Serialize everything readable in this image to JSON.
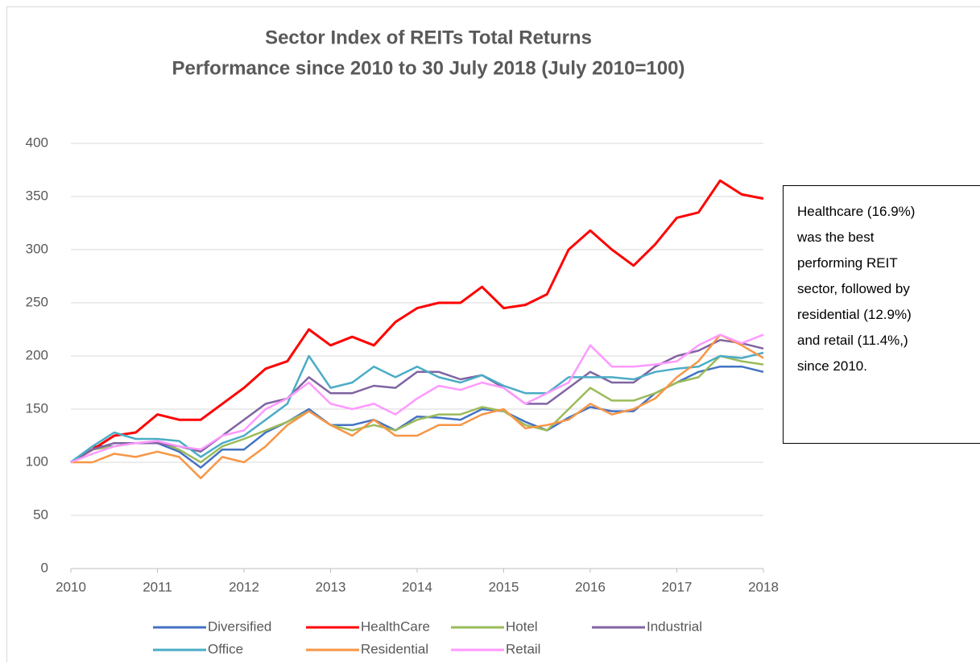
{
  "chart_data": {
    "type": "line",
    "title": "Sector Index of REITs Total Returns",
    "subtitle": "Performance since 2010 to 30 July 2018 (July 2010=100)",
    "annotation": [
      "Healthcare (16.9%)",
      "was the best",
      "performing REIT",
      "sector, followed by",
      "residential (12.9%)",
      "and retail (11.4%,)",
      "since 2010."
    ],
    "x": [
      2010,
      2010.25,
      2010.5,
      2010.75,
      2011,
      2011.25,
      2011.5,
      2011.75,
      2012,
      2012.25,
      2012.5,
      2012.75,
      2013,
      2013.25,
      2013.5,
      2013.75,
      2014,
      2014.25,
      2014.5,
      2014.75,
      2015,
      2015.25,
      2015.5,
      2015.75,
      2016,
      2016.25,
      2016.5,
      2016.75,
      2017,
      2017.25,
      2017.5,
      2017.75,
      2018
    ],
    "xlim": [
      2010,
      2018
    ],
    "xticks": [
      2010,
      2011,
      2012,
      2013,
      2014,
      2015,
      2016,
      2017,
      2018
    ],
    "ylim": [
      0,
      400
    ],
    "yticks": [
      0,
      50,
      100,
      150,
      200,
      250,
      300,
      350,
      400
    ],
    "grid": true,
    "legend": "bottom",
    "series": [
      {
        "name": "Diversified",
        "color": "#4472c4",
        "values": [
          100,
          115,
          115,
          118,
          118,
          110,
          95,
          112,
          112,
          128,
          138,
          150,
          135,
          135,
          140,
          130,
          143,
          142,
          140,
          150,
          148,
          138,
          130,
          142,
          152,
          148,
          148,
          165,
          175,
          185,
          190,
          190,
          185
        ]
      },
      {
        "name": "HealthCare",
        "color": "#ff0000",
        "values": [
          100,
          112,
          125,
          128,
          145,
          140,
          140,
          155,
          170,
          188,
          195,
          225,
          210,
          218,
          210,
          232,
          245,
          250,
          250,
          265,
          245,
          248,
          258,
          300,
          318,
          300,
          285,
          305,
          330,
          335,
          365,
          352,
          348
        ]
      },
      {
        "name": "Hotel",
        "color": "#9bbb59",
        "values": [
          100,
          112,
          115,
          118,
          120,
          112,
          100,
          115,
          122,
          130,
          138,
          148,
          135,
          130,
          135,
          130,
          140,
          145,
          145,
          152,
          148,
          135,
          130,
          150,
          170,
          158,
          158,
          165,
          175,
          180,
          200,
          195,
          192
        ]
      },
      {
        "name": "Industrial",
        "color": "#8064a2",
        "values": [
          100,
          112,
          118,
          118,
          118,
          115,
          110,
          125,
          140,
          155,
          160,
          180,
          165,
          165,
          172,
          170,
          185,
          185,
          178,
          182,
          170,
          155,
          155,
          170,
          185,
          175,
          175,
          190,
          200,
          205,
          215,
          212,
          207
        ]
      },
      {
        "name": "Office",
        "color": "#4bacc6",
        "values": [
          100,
          115,
          128,
          122,
          122,
          120,
          105,
          118,
          125,
          140,
          155,
          200,
          170,
          175,
          190,
          180,
          190,
          180,
          175,
          182,
          172,
          165,
          165,
          180,
          180,
          180,
          178,
          185,
          188,
          190,
          200,
          198,
          203
        ]
      },
      {
        "name": "Residential",
        "color": "#f79646",
        "values": [
          100,
          100,
          108,
          105,
          110,
          105,
          85,
          105,
          100,
          115,
          135,
          148,
          135,
          125,
          140,
          125,
          125,
          135,
          135,
          145,
          150,
          132,
          135,
          140,
          155,
          145,
          150,
          160,
          180,
          195,
          220,
          210,
          198
        ]
      },
      {
        "name": "Retail",
        "color": "#ff99ff",
        "values": [
          100,
          108,
          115,
          118,
          120,
          115,
          112,
          125,
          130,
          150,
          160,
          175,
          155,
          150,
          155,
          145,
          160,
          172,
          168,
          175,
          170,
          155,
          165,
          175,
          210,
          190,
          190,
          192,
          195,
          210,
          220,
          212,
          220
        ]
      }
    ]
  }
}
